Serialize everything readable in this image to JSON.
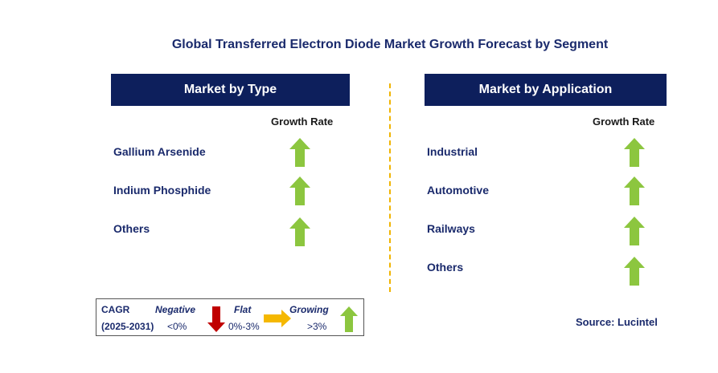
{
  "title": "Global Transferred Electron Diode Market Growth Forecast by Segment",
  "colors": {
    "header_bg": "#0d1f5c",
    "growing": "#8cc63f",
    "negative": "#c00000",
    "flat": "#f5b800",
    "divider": "#f0b400"
  },
  "type_panel": {
    "header": "Market by Type",
    "rate_label": "Growth Rate",
    "segments": [
      {
        "label": "Gallium Arsenide",
        "trend": "growing"
      },
      {
        "label": "Indium Phosphide",
        "trend": "growing"
      },
      {
        "label": "Others",
        "trend": "growing"
      }
    ]
  },
  "application_panel": {
    "header": "Market by Application",
    "rate_label": "Growth Rate",
    "segments": [
      {
        "label": "Industrial",
        "trend": "growing"
      },
      {
        "label": "Automotive",
        "trend": "growing"
      },
      {
        "label": "Railways",
        "trend": "growing"
      },
      {
        "label": "Others",
        "trend": "growing"
      }
    ]
  },
  "legend": {
    "cagr": "CAGR",
    "period": "(2025-2031)",
    "negative_label": "Negative",
    "negative_range": "<0%",
    "flat_label": "Flat",
    "flat_range": "0%-3%",
    "growing_label": "Growing",
    "growing_range": ">3%"
  },
  "source": "Source: Lucintel"
}
